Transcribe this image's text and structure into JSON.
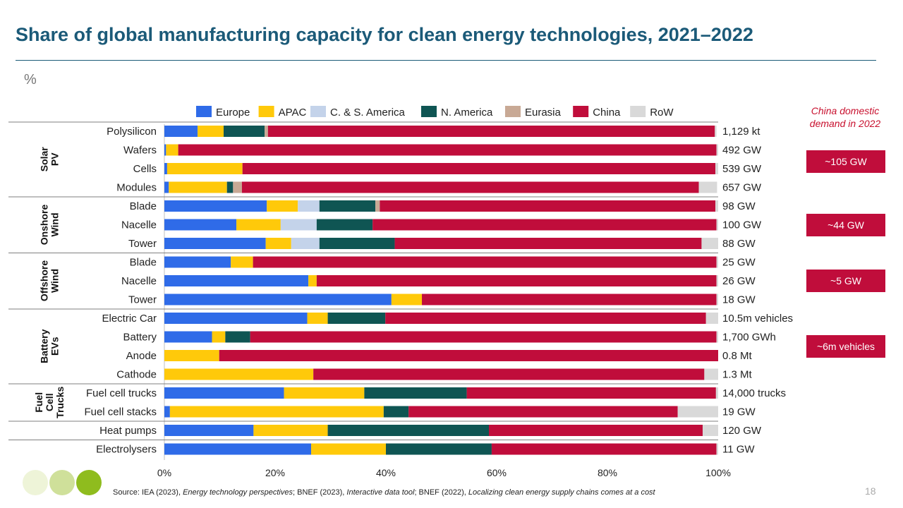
{
  "title": "Share of global manufacturing capacity for clean energy technologies, 2021–2022",
  "unit_label": "%",
  "colors": {
    "title": "#1b5a78",
    "europe": "#2f6be8",
    "apac": "#ffc90a",
    "csam": "#c4d3ea",
    "namerica": "#0f5553",
    "eurasia": "#c8a995",
    "china": "#c00d3b",
    "row": "#d9d9d9"
  },
  "chart_data": {
    "type": "bar",
    "orientation": "horizontal",
    "stacked": true,
    "x_ticks": [
      "0%",
      "20%",
      "40%",
      "60%",
      "80%",
      "100%"
    ],
    "xlim": [
      0,
      100
    ],
    "legend_position": "top",
    "series_names": [
      "Europe",
      "APAC",
      "C. & S. America",
      "N. America",
      "Eurasia",
      "China",
      "RoW"
    ],
    "groups": [
      {
        "label": "Solar PV",
        "start": 0,
        "end": 3
      },
      {
        "label": "Onshore Wind",
        "start": 4,
        "end": 6
      },
      {
        "label": "Offshore Wind",
        "start": 7,
        "end": 9
      },
      {
        "label": "Battery EVs",
        "start": 10,
        "end": 13
      },
      {
        "label": "Fuel Cell Trucks",
        "start": 14,
        "end": 15
      },
      {
        "label": "",
        "start": 16,
        "end": 16
      },
      {
        "label": "",
        "start": 17,
        "end": 17
      }
    ],
    "categories": [
      {
        "label": "Polysilicon",
        "total": "1,129 kt",
        "values": [
          6,
          4.7,
          0,
          7.4,
          0.6,
          80.7,
          0.3
        ]
      },
      {
        "label": "Wafers",
        "total": "492 GW",
        "values": [
          0.3,
          2.2,
          0,
          0,
          0,
          97.2,
          0.3
        ]
      },
      {
        "label": "Cells",
        "total": "539 GW",
        "values": [
          0.5,
          13.6,
          0,
          0,
          0,
          85.4,
          0.5
        ]
      },
      {
        "label": "Modules",
        "total": "657 GW",
        "values": [
          0.8,
          10.5,
          0,
          1.1,
          1.6,
          82.5,
          3.3
        ]
      },
      {
        "label": "Blade",
        "total": "98 GW",
        "values": [
          18.5,
          5.6,
          3.9,
          10.1,
          0.8,
          60.6,
          0.5
        ]
      },
      {
        "label": "Nacelle",
        "total": "100 GW",
        "values": [
          13,
          8,
          6.5,
          10.1,
          0,
          62.1,
          0.3
        ]
      },
      {
        "label": "Tower",
        "total": "88 GW",
        "values": [
          18.3,
          4.6,
          5.1,
          13.6,
          0,
          55.4,
          3
        ]
      },
      {
        "label": "Blade",
        "total": "25 GW",
        "values": [
          12,
          4,
          0,
          0,
          0,
          83.7,
          0.3
        ]
      },
      {
        "label": "Nacelle",
        "total": "26 GW",
        "values": [
          26,
          1.5,
          0,
          0,
          0,
          72.2,
          0.3
        ]
      },
      {
        "label": "Tower",
        "total": "18 GW",
        "values": [
          41,
          5.5,
          0,
          0,
          0,
          53.2,
          0.3
        ]
      },
      {
        "label": "Electric Car",
        "total": "10.5m vehicles",
        "values": [
          25.8,
          3.7,
          0,
          10.4,
          0,
          57.9,
          2.2
        ]
      },
      {
        "label": "Battery",
        "total": "1,700 GWh",
        "values": [
          8.6,
          2.4,
          0,
          4.5,
          0,
          84.2,
          0.3
        ]
      },
      {
        "label": "Anode",
        "total": "0.8 Mt",
        "values": [
          0,
          9.9,
          0,
          0,
          0,
          90.1,
          0
        ]
      },
      {
        "label": "Cathode",
        "total": "1.3 Mt",
        "values": [
          0,
          26.9,
          0,
          0,
          0,
          70.6,
          2.5
        ]
      },
      {
        "label": "Fuel cell trucks",
        "total": "14,000 trucks",
        "values": [
          21.6,
          14.5,
          0,
          18.5,
          0,
          45,
          0.4
        ]
      },
      {
        "label": "Fuel cell stacks",
        "total": "19 GW",
        "values": [
          1,
          38.6,
          0,
          4.5,
          0,
          48.6,
          7.3
        ]
      },
      {
        "label": "Heat pumps",
        "total": "120 GW",
        "values": [
          16.1,
          13.4,
          0,
          29.1,
          0,
          38.6,
          2.8
        ]
      },
      {
        "label": "Electrolysers",
        "total": "11 GW",
        "values": [
          26.5,
          13.5,
          0,
          19.1,
          0,
          40.6,
          0.3
        ]
      }
    ]
  },
  "china_demand": {
    "heading": "China domestic demand in 2022",
    "boxes": [
      "~105 GW",
      "~44 GW",
      "~5 GW",
      "~6m vehicles"
    ]
  },
  "source": {
    "s1": "Source: IEA (2023), ",
    "s2": "Energy technology perspectives",
    "s3": "; BNEF (2023), ",
    "s4": "Interactive data tool",
    "s5": "; BNEF (2022), ",
    "s6": "Localizing clean energy supply chains comes at a cost"
  },
  "page_number": "18"
}
